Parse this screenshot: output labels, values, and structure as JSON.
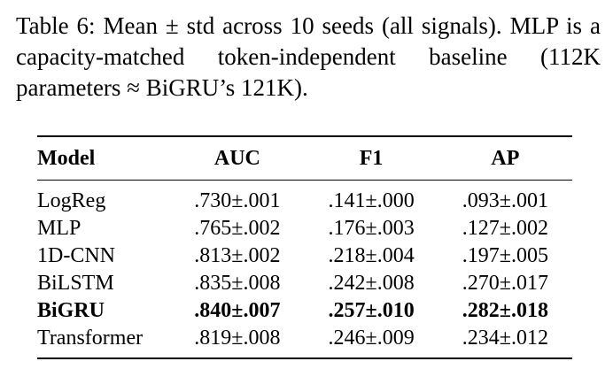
{
  "caption": {
    "label": "Table 6:",
    "text": "Mean ± std across 10 seeds (all signals). MLP is a capacity-matched token-independent baseline (112K parameters ≈ BiGRU’s 121K)."
  },
  "table": {
    "headers": [
      "Model",
      "AUC",
      "F1",
      "AP"
    ],
    "rows": [
      {
        "model": "LogReg",
        "auc": ".730±.001",
        "f1": ".141±.000",
        "ap": ".093±.001",
        "bold": false
      },
      {
        "model": "MLP",
        "auc": ".765±.002",
        "f1": ".176±.003",
        "ap": ".127±.002",
        "bold": false
      },
      {
        "model": "1D-CNN",
        "auc": ".813±.002",
        "f1": ".218±.004",
        "ap": ".197±.005",
        "bold": false
      },
      {
        "model": "BiLSTM",
        "auc": ".835±.008",
        "f1": ".242±.008",
        "ap": ".270±.017",
        "bold": false
      },
      {
        "model": "BiGRU",
        "auc": ".840±.007",
        "f1": ".257±.010",
        "ap": ".282±.018",
        "bold": true
      },
      {
        "model": "Transformer",
        "auc": ".819±.008",
        "f1": ".246±.009",
        "ap": ".234±.012",
        "bold": false
      }
    ]
  }
}
